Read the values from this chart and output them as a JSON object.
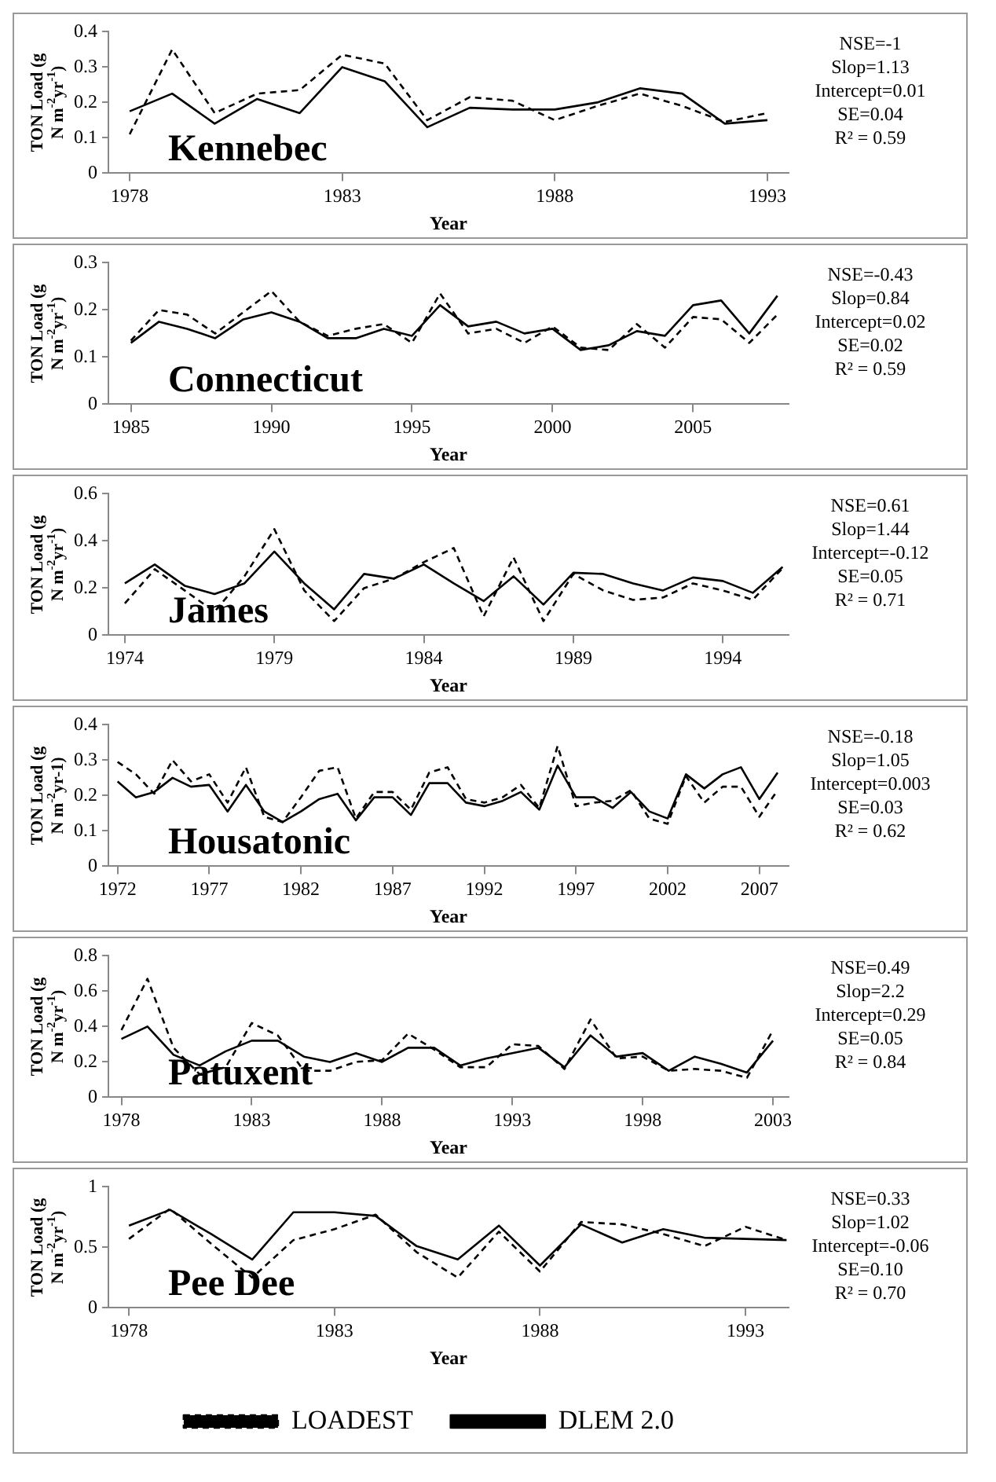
{
  "chart_data": [
    {
      "type": "line",
      "title": "Kennebec",
      "xlabel": "Year",
      "ylabel": "TON Load (g N m$^{-2}$yr$^{-1}$)",
      "annotations": [
        "NSE=-1",
        "Slop=1.13",
        "Intercept=0.01",
        "SE=0.04",
        "R² = 0.59"
      ],
      "xlim": [
        1977.5,
        1993.5
      ],
      "xticks": [
        1978,
        1983,
        1988,
        1993
      ],
      "ylim": [
        0,
        0.4
      ],
      "yticks": [
        0,
        0.1,
        0.2,
        0.3,
        0.4
      ],
      "grid": false,
      "legend": false,
      "marker": "none",
      "x": [
        1978,
        1979,
        1980,
        1981,
        1982,
        1983,
        1984,
        1985,
        1986,
        1987,
        1988,
        1989,
        1990,
        1991,
        1992,
        1993
      ],
      "series": [
        {
          "color": "#000000",
          "line_style": "dashed",
          "values": [
            0.11,
            0.35,
            0.17,
            0.225,
            0.235,
            0.335,
            0.31,
            0.15,
            0.215,
            0.205,
            0.15,
            0.19,
            0.225,
            0.19,
            0.145,
            0.17
          ]
        },
        {
          "color": "#000000",
          "line_style": "solid",
          "values": [
            0.175,
            0.225,
            0.14,
            0.21,
            0.17,
            0.3,
            0.26,
            0.13,
            0.185,
            0.18,
            0.18,
            0.2,
            0.24,
            0.225,
            0.14,
            0.15
          ]
        }
      ]
    },
    {
      "type": "line",
      "title": "Connecticut",
      "xlabel": "Year",
      "ylabel": "TON Load (g N m$^{-2}$yr$^{-1}$)",
      "annotations": [
        "NSE=-0.43",
        "Slop=0.84",
        "Intercept=0.02",
        "SE=0.02",
        "R² = 0.59"
      ],
      "xlim": [
        1984.2,
        2008.4
      ],
      "xticks": [
        1985,
        1990,
        1995,
        2000,
        2005
      ],
      "ylim": [
        0,
        0.3
      ],
      "yticks": [
        0,
        0.1,
        0.2,
        0.3
      ],
      "grid": false,
      "legend": false,
      "marker": "none",
      "x": [
        1985,
        1986,
        1987,
        1988,
        1989,
        1990,
        1991,
        1992,
        1993,
        1994,
        1995,
        1996,
        1997,
        1998,
        1999,
        2000,
        2001,
        2002,
        2003,
        2004,
        2005,
        2006,
        2007,
        2008
      ],
      "series": [
        {
          "color": "#000000",
          "line_style": "dashed",
          "values": [
            0.135,
            0.2,
            0.19,
            0.15,
            0.195,
            0.24,
            0.175,
            0.145,
            0.16,
            0.17,
            0.13,
            0.235,
            0.15,
            0.16,
            0.13,
            0.165,
            0.12,
            0.115,
            0.17,
            0.12,
            0.185,
            0.18,
            0.13,
            0.19
          ]
        },
        {
          "color": "#000000",
          "line_style": "solid",
          "values": [
            0.13,
            0.175,
            0.16,
            0.14,
            0.18,
            0.195,
            0.175,
            0.14,
            0.14,
            0.16,
            0.145,
            0.21,
            0.165,
            0.175,
            0.15,
            0.16,
            0.115,
            0.125,
            0.155,
            0.145,
            0.21,
            0.22,
            0.15,
            0.23
          ]
        }
      ]
    },
    {
      "type": "line",
      "title": "James",
      "xlabel": "Year",
      "ylabel": "TON Load (g N m$^{-2}$yr$^{-1}$)",
      "annotations": [
        "NSE=0.61",
        "Slop=1.44",
        "Intercept=-0.12",
        "SE=0.05",
        "R² = 0.71"
      ],
      "xlim": [
        1973.45,
        1996.2
      ],
      "xticks": [
        1974,
        1979,
        1984,
        1989,
        1994
      ],
      "ylim": [
        0,
        0.6
      ],
      "yticks": [
        0,
        0.2,
        0.4,
        0.6
      ],
      "grid": false,
      "legend": false,
      "marker": "none",
      "x": [
        1974,
        1975,
        1976,
        1977,
        1978,
        1979,
        1980,
        1981,
        1982,
        1983,
        1984,
        1985,
        1986,
        1987,
        1988,
        1989,
        1990,
        1991,
        1992,
        1993,
        1994,
        1995,
        1996
      ],
      "series": [
        {
          "color": "#000000",
          "line_style": "dashed",
          "values": [
            0.135,
            0.28,
            0.19,
            0.1,
            0.25,
            0.45,
            0.19,
            0.06,
            0.2,
            0.24,
            0.31,
            0.37,
            0.08,
            0.33,
            0.06,
            0.26,
            0.19,
            0.15,
            0.16,
            0.22,
            0.19,
            0.15,
            0.285
          ]
        },
        {
          "color": "#000000",
          "line_style": "solid",
          "values": [
            0.22,
            0.3,
            0.21,
            0.175,
            0.22,
            0.355,
            0.22,
            0.11,
            0.26,
            0.24,
            0.3,
            0.22,
            0.145,
            0.25,
            0.13,
            0.265,
            0.26,
            0.22,
            0.19,
            0.245,
            0.23,
            0.18,
            0.29
          ]
        }
      ]
    },
    {
      "type": "line",
      "title": "Housatonic",
      "xlabel": "Year",
      "ylabel": "TON Load (g N m$^{-2}$yr-1)",
      "annotations": [
        "NSE=-0.18",
        "Slop=1.05",
        "Intercept=0.003",
        "SE=0.03",
        "R² = 0.62"
      ],
      "xlim": [
        1971.5,
        2008.6
      ],
      "xticks": [
        1972,
        1977,
        1982,
        1987,
        1992,
        1997,
        2002,
        2007
      ],
      "ylim": [
        0,
        0.4
      ],
      "yticks": [
        0,
        0.1,
        0.2,
        0.3,
        0.4
      ],
      "grid": false,
      "legend": false,
      "marker": "none",
      "x": [
        1972,
        1973,
        1974,
        1975,
        1976,
        1977,
        1978,
        1979,
        1980,
        1981,
        1982,
        1983,
        1984,
        1985,
        1986,
        1987,
        1988,
        1989,
        1990,
        1991,
        1992,
        1993,
        1994,
        1995,
        1996,
        1997,
        1998,
        1999,
        2000,
        2001,
        2002,
        2003,
        2004,
        2005,
        2006,
        2007,
        2008
      ],
      "series": [
        {
          "color": "#000000",
          "line_style": "dashed",
          "values": [
            0.295,
            0.26,
            0.205,
            0.3,
            0.24,
            0.26,
            0.18,
            0.28,
            0.14,
            0.125,
            0.195,
            0.27,
            0.28,
            0.135,
            0.21,
            0.21,
            0.16,
            0.265,
            0.28,
            0.19,
            0.18,
            0.195,
            0.23,
            0.165,
            0.34,
            0.17,
            0.18,
            0.185,
            0.215,
            0.135,
            0.12,
            0.255,
            0.18,
            0.225,
            0.225,
            0.14,
            0.215
          ]
        },
        {
          "color": "#000000",
          "line_style": "solid",
          "values": [
            0.24,
            0.195,
            0.21,
            0.25,
            0.225,
            0.23,
            0.155,
            0.23,
            0.155,
            0.125,
            0.155,
            0.19,
            0.205,
            0.13,
            0.195,
            0.195,
            0.145,
            0.235,
            0.235,
            0.18,
            0.17,
            0.185,
            0.21,
            0.16,
            0.285,
            0.195,
            0.195,
            0.165,
            0.21,
            0.155,
            0.135,
            0.26,
            0.22,
            0.26,
            0.28,
            0.19,
            0.265
          ]
        }
      ]
    },
    {
      "type": "line",
      "title": "Patuxent",
      "xlabel": "Year",
      "ylabel": "TON Load (g N m$^{-2}$yr$^{-1}$)",
      "annotations": [
        "NSE=0.49",
        "Slop=2.2",
        "Intercept=0.29",
        "SE=0.05",
        "R² = 0.84"
      ],
      "xlim": [
        1977.5,
        2003.6
      ],
      "xticks": [
        1978,
        1983,
        1988,
        1993,
        1998,
        2003
      ],
      "ylim": [
        0,
        0.8
      ],
      "yticks": [
        0,
        0.2,
        0.4,
        0.6,
        0.8
      ],
      "grid": false,
      "legend": false,
      "marker": "none",
      "x": [
        1978,
        1979,
        1980,
        1981,
        1982,
        1983,
        1984,
        1985,
        1986,
        1987,
        1988,
        1989,
        1990,
        1991,
        1992,
        1993,
        1994,
        1995,
        1996,
        1997,
        1998,
        1999,
        2000,
        2001,
        2002,
        2003
      ],
      "series": [
        {
          "color": "#000000",
          "line_style": "dashed",
          "values": [
            0.38,
            0.67,
            0.28,
            0.13,
            0.17,
            0.42,
            0.35,
            0.15,
            0.15,
            0.2,
            0.21,
            0.36,
            0.27,
            0.17,
            0.17,
            0.3,
            0.29,
            0.16,
            0.44,
            0.22,
            0.23,
            0.15,
            0.16,
            0.15,
            0.11,
            0.38
          ]
        },
        {
          "color": "#000000",
          "line_style": "solid",
          "values": [
            0.33,
            0.4,
            0.24,
            0.18,
            0.26,
            0.32,
            0.32,
            0.23,
            0.2,
            0.25,
            0.2,
            0.28,
            0.28,
            0.18,
            0.22,
            0.25,
            0.28,
            0.17,
            0.35,
            0.23,
            0.25,
            0.15,
            0.23,
            0.19,
            0.14,
            0.32
          ]
        }
      ]
    },
    {
      "type": "line",
      "title": "Pee Dee",
      "xlabel": "Year",
      "ylabel": "TON Load (g N m$^{-2}$yr$^{-1}$)",
      "annotations": [
        "NSE=0.33",
        "Slop=1.02",
        "Intercept=-0.06",
        "SE=0.10",
        "R² = 0.70"
      ],
      "xlim": [
        1977.5,
        1994.05
      ],
      "xticks": [
        1978,
        1983,
        1988,
        1993
      ],
      "ylim": [
        0,
        1
      ],
      "yticks": [
        0,
        0.5,
        1
      ],
      "grid": false,
      "legend": "bottom",
      "marker": "none",
      "x": [
        1978,
        1979,
        1980,
        1981,
        1982,
        1983,
        1984,
        1985,
        1986,
        1987,
        1988,
        1989,
        1990,
        1991,
        1992,
        1993,
        1994
      ],
      "series": [
        {
          "name": "LOADEST",
          "color": "#000000",
          "line_style": "dashed",
          "values": [
            0.57,
            0.82,
            0.53,
            0.25,
            0.56,
            0.65,
            0.77,
            0.46,
            0.25,
            0.63,
            0.3,
            0.71,
            0.69,
            0.61,
            0.51,
            0.67,
            0.56
          ]
        },
        {
          "name": "DLEM 2.0",
          "color": "#000000",
          "line_style": "solid",
          "values": [
            0.68,
            0.81,
            0.61,
            0.4,
            0.79,
            0.79,
            0.76,
            0.51,
            0.4,
            0.68,
            0.35,
            0.69,
            0.54,
            0.65,
            0.58,
            0.57,
            0.56
          ]
        }
      ]
    }
  ]
}
